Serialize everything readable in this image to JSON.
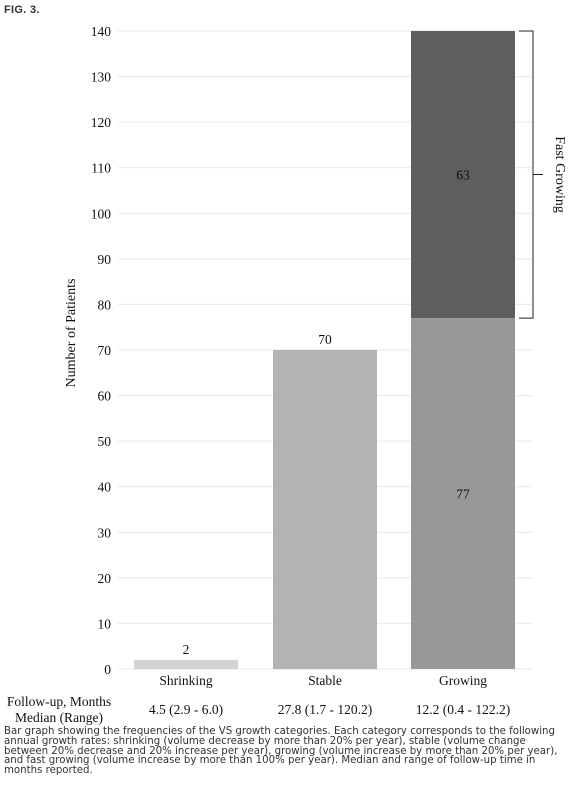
{
  "figure_label": "FIG. 3.",
  "chart_data": {
    "type": "bar",
    "stacked": true,
    "ylabel": "Number of Patients",
    "ylim": [
      0,
      140
    ],
    "yticks": [
      0,
      10,
      20,
      30,
      40,
      50,
      60,
      70,
      80,
      90,
      100,
      110,
      120,
      130,
      140
    ],
    "grid": true,
    "categories": [
      "Shrinking",
      "Stable",
      "Growing"
    ],
    "segments": [
      {
        "category": "Shrinking",
        "value": 2,
        "label": "2",
        "color": "#d3d3d3"
      },
      {
        "category": "Stable",
        "value": 70,
        "label": "70",
        "color": "#b3b3b3"
      },
      {
        "category": "Growing",
        "value": 77,
        "label": "77",
        "color": "#989898"
      },
      {
        "category": "Growing",
        "value": 63,
        "label": "63",
        "color": "#5e5e5e"
      }
    ],
    "bracket": {
      "label": "Fast Growing",
      "from": 77,
      "to": 140
    },
    "followup": {
      "row_label_1": "Follow-up, Months",
      "row_label_2": "Median (Range)",
      "values": [
        "4.5 (2.9 - 6.0)",
        "27.8 (1.7 - 120.2)",
        "12.2 (0.4 - 122.2)"
      ]
    }
  },
  "caption": "Bar graph showing the frequencies of the VS growth categories. Each category corresponds to the following annual growth rates: shrinking (volume decrease by more than 20% per year), stable (volume change between 20% decrease and 20% increase per year), growing (volume increase by more than 20% per year), and fast growing (volume increase by more than 100% per year). Median and range of follow-up time in months reported."
}
